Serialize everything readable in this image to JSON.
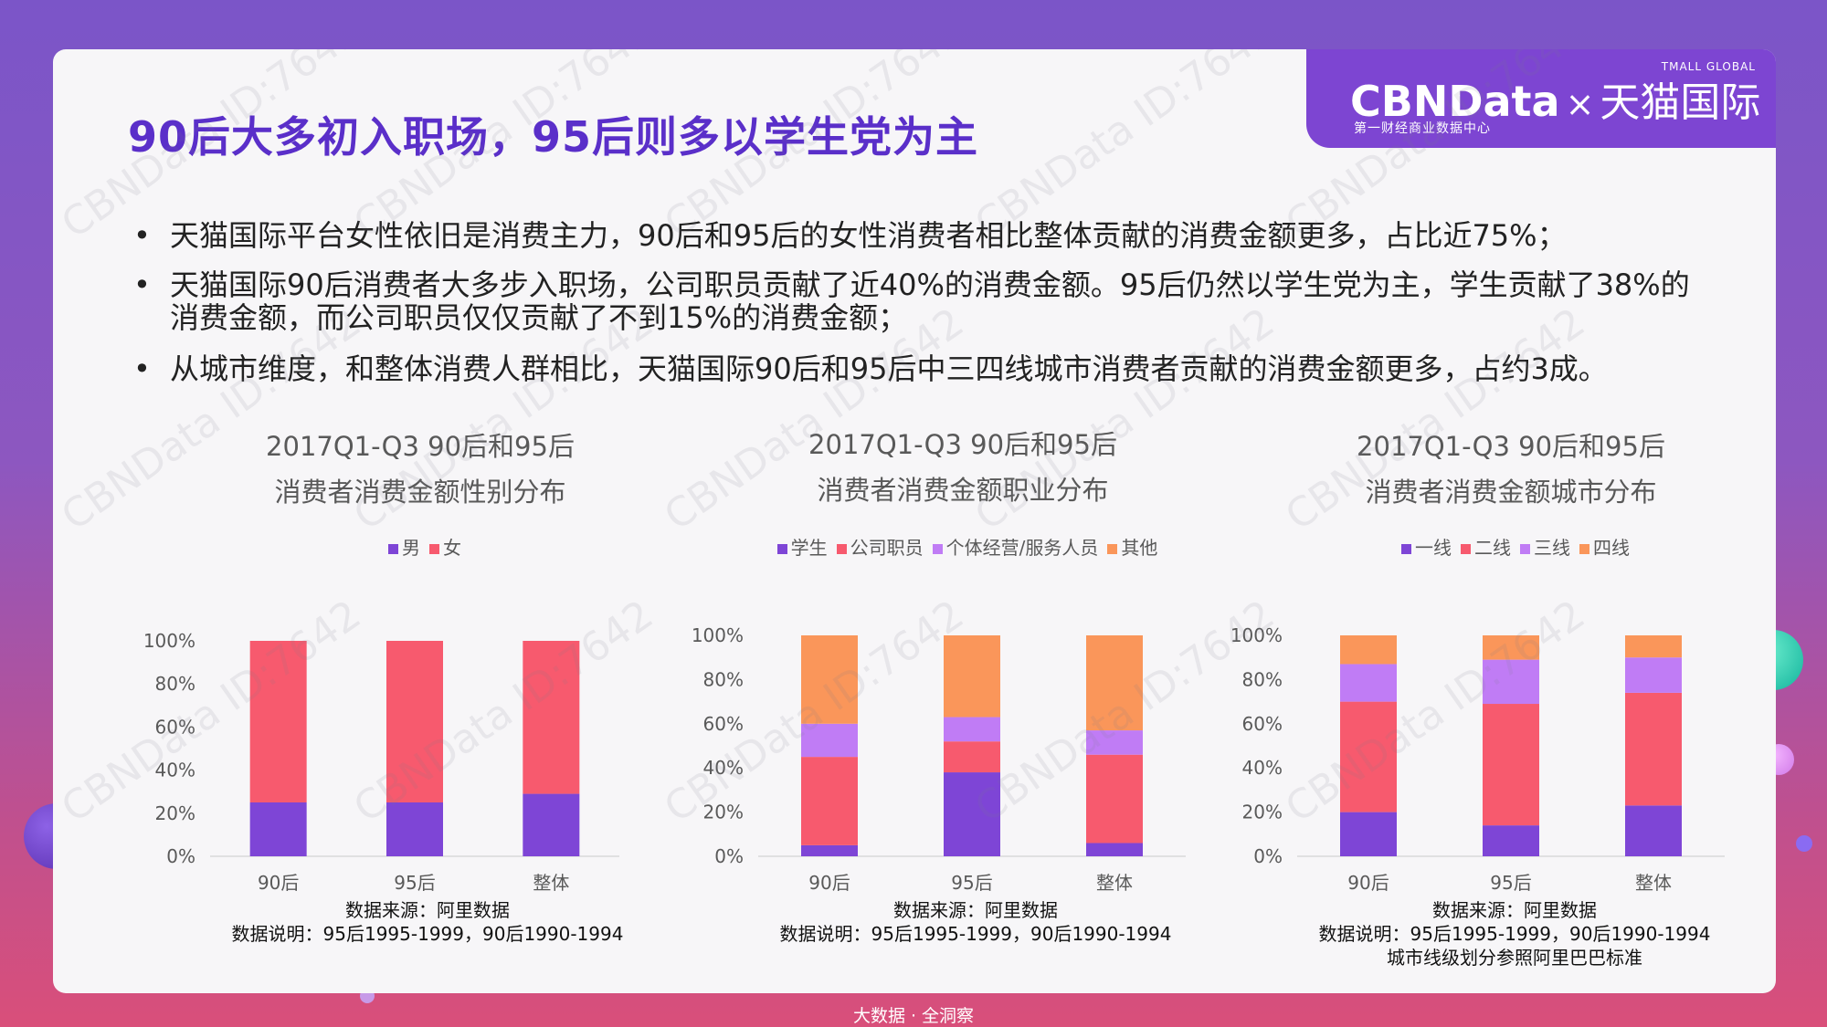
{
  "title": "90后大多初入职场，95后则多以学生党为主",
  "logo": {
    "top_small": "TMALL GLOBAL",
    "brand": "CBNData",
    "times": "×",
    "partner": "天猫国际",
    "subtitle": "第一财经商业数据中心"
  },
  "bullets": [
    "天猫国际平台女性依旧是消费主力，90后和95后的女性消费者相比整体贡献的消费金额更多，占比近75%；",
    "天猫国际90后消费者大多步入职场，公司职员贡献了近40%的消费金额。95后仍然以学生党为主，学生贡献了38%的消费金额，而公司职员仅仅贡献了不到15%的消费金额；",
    "从城市维度，和整体消费人群相比，天猫国际90后和95后中三四线城市消费者贡献的消费金额更多，占约3成。"
  ],
  "watermark": "CBNData ID:7642",
  "footer": "大数据 · 全洞察",
  "chart_data": [
    {
      "type": "bar",
      "stacked": true,
      "title_line1": "2017Q1-Q3 90后和95后",
      "title_line2": "消费者消费金额性别分布",
      "categories": [
        "90后",
        "95后",
        "整体"
      ],
      "series": [
        {
          "name": "男",
          "color": "#7e45d6",
          "values": [
            25,
            25,
            29
          ]
        },
        {
          "name": "女",
          "color": "#f75a6e",
          "values": [
            75,
            75,
            71
          ]
        }
      ],
      "ylim": [
        0,
        100
      ],
      "yticks": [
        "0%",
        "20%",
        "40%",
        "60%",
        "80%",
        "100%"
      ],
      "note_line1": "数据来源：阿里数据",
      "note_line2": "数据说明：95后1995-1999，90后1990-1994",
      "note_line3": ""
    },
    {
      "type": "bar",
      "stacked": true,
      "title_line1": "2017Q1-Q3 90后和95后",
      "title_line2": "消费者消费金额职业分布",
      "categories": [
        "90后",
        "95后",
        "整体"
      ],
      "series": [
        {
          "name": "学生",
          "color": "#7e45d6",
          "values": [
            5,
            38,
            6
          ]
        },
        {
          "name": "公司职员",
          "color": "#f75a6e",
          "values": [
            40,
            14,
            40
          ]
        },
        {
          "name": "个体经营/服务人员",
          "color": "#c07cf5",
          "values": [
            15,
            11,
            11
          ]
        },
        {
          "name": "其他",
          "color": "#fa965a",
          "values": [
            40,
            37,
            43
          ]
        }
      ],
      "ylim": [
        0,
        100
      ],
      "yticks": [
        "0%",
        "20%",
        "40%",
        "60%",
        "80%",
        "100%"
      ],
      "note_line1": "数据来源：阿里数据",
      "note_line2": "数据说明：95后1995-1999，90后1990-1994",
      "note_line3": ""
    },
    {
      "type": "bar",
      "stacked": true,
      "title_line1": "2017Q1-Q3 90后和95后",
      "title_line2": "消费者消费金额城市分布",
      "categories": [
        "90后",
        "95后",
        "整体"
      ],
      "series": [
        {
          "name": "一线",
          "color": "#7e45d6",
          "values": [
            20,
            14,
            23
          ]
        },
        {
          "name": "二线",
          "color": "#f75a6e",
          "values": [
            50,
            55,
            51
          ]
        },
        {
          "name": "三线",
          "color": "#c07cf5",
          "values": [
            17,
            20,
            16
          ]
        },
        {
          "name": "四线",
          "color": "#fa965a",
          "values": [
            13,
            11,
            10
          ]
        }
      ],
      "ylim": [
        0,
        100
      ],
      "yticks": [
        "0%",
        "20%",
        "40%",
        "60%",
        "80%",
        "100%"
      ],
      "note_line1": "数据来源：阿里数据",
      "note_line2": "数据说明：95后1995-1999，90后1990-1994",
      "note_line3": "城市线级划分参照阿里巴巴标准"
    }
  ]
}
